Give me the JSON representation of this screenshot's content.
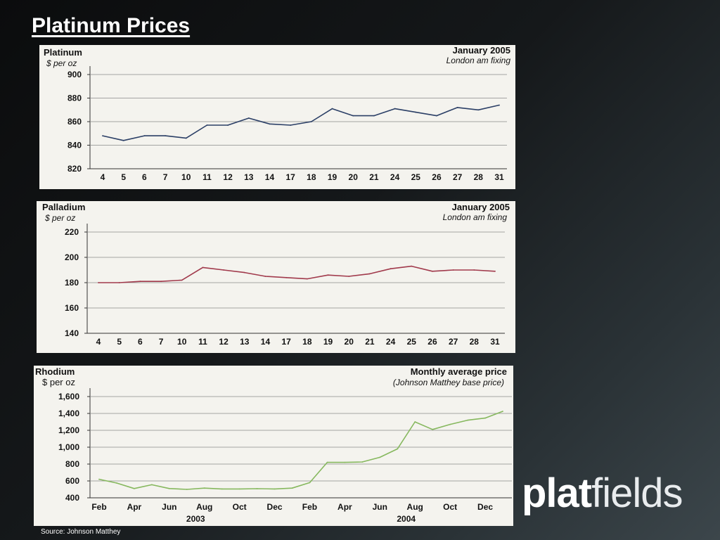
{
  "slide": {
    "title": "Platinum Prices",
    "logo_bold": "plat",
    "logo_light": "fields",
    "source": "Source: Johnson Matthey"
  },
  "chart_data": [
    {
      "type": "line",
      "title": "Platinum",
      "unit_label": "$ per oz",
      "period": "January 2005",
      "note": "London am fixing",
      "categories": [
        "4",
        "5",
        "6",
        "7",
        "10",
        "11",
        "12",
        "13",
        "14",
        "17",
        "18",
        "19",
        "20",
        "21",
        "24",
        "25",
        "26",
        "27",
        "28",
        "31"
      ],
      "values": [
        848,
        844,
        848,
        848,
        846,
        857,
        857,
        863,
        858,
        857,
        860,
        871,
        865,
        865,
        871,
        868,
        865,
        872,
        870,
        874
      ],
      "y_ticks": [
        "900",
        "880",
        "860",
        "840",
        "820"
      ],
      "ylim": [
        820,
        900
      ],
      "color": "#2b3f66"
    },
    {
      "type": "line",
      "title": "Palladium",
      "unit_label": "$ per oz",
      "period": "January 2005",
      "note": "London am fixing",
      "categories": [
        "4",
        "5",
        "6",
        "7",
        "10",
        "11",
        "12",
        "13",
        "14",
        "17",
        "18",
        "19",
        "20",
        "21",
        "24",
        "25",
        "26",
        "27",
        "28",
        "31"
      ],
      "values": [
        180,
        180,
        181,
        181,
        182,
        192,
        190,
        188,
        185,
        184,
        183,
        186,
        185,
        187,
        191,
        193,
        189,
        190,
        190,
        189
      ],
      "y_ticks": [
        "220",
        "200",
        "180",
        "160",
        "140"
      ],
      "ylim": [
        140,
        220
      ],
      "color": "#a13a4c"
    },
    {
      "type": "line",
      "title": "Rhodium",
      "unit_label": "$ per oz",
      "period": "Monthly average price",
      "note": "(Johnson Matthey base price)",
      "categories": [
        "Feb 2003",
        "Mar 2003",
        "Apr 2003",
        "May 2003",
        "Jun 2003",
        "Jul 2003",
        "Aug 2003",
        "Sep 2003",
        "Oct 2003",
        "Nov 2003",
        "Dec 2003",
        "Jan 2004",
        "Feb 2004",
        "Mar 2004",
        "Apr 2004",
        "May 2004",
        "Jun 2004",
        "Jul 2004",
        "Aug 2004",
        "Sep 2004",
        "Oct 2004",
        "Nov 2004",
        "Dec 2004",
        "Jan 2005"
      ],
      "x_tick_labels": [
        "Feb",
        "Apr",
        "Jun",
        "Aug",
        "Oct",
        "Dec",
        "Feb",
        "Apr",
        "Jun",
        "Aug",
        "Oct",
        "Dec"
      ],
      "year_labels": [
        "2003",
        "2004"
      ],
      "values": [
        620,
        575,
        510,
        555,
        510,
        500,
        515,
        505,
        505,
        508,
        505,
        515,
        580,
        820,
        820,
        825,
        880,
        980,
        1300,
        1210,
        1270,
        1320,
        1345,
        1425
      ],
      "y_ticks": [
        "1,600",
        "1,400",
        "1,200",
        "1,000",
        "800",
        "600",
        "400"
      ],
      "ylim": [
        400,
        1600
      ],
      "color": "#86b85e"
    }
  ]
}
